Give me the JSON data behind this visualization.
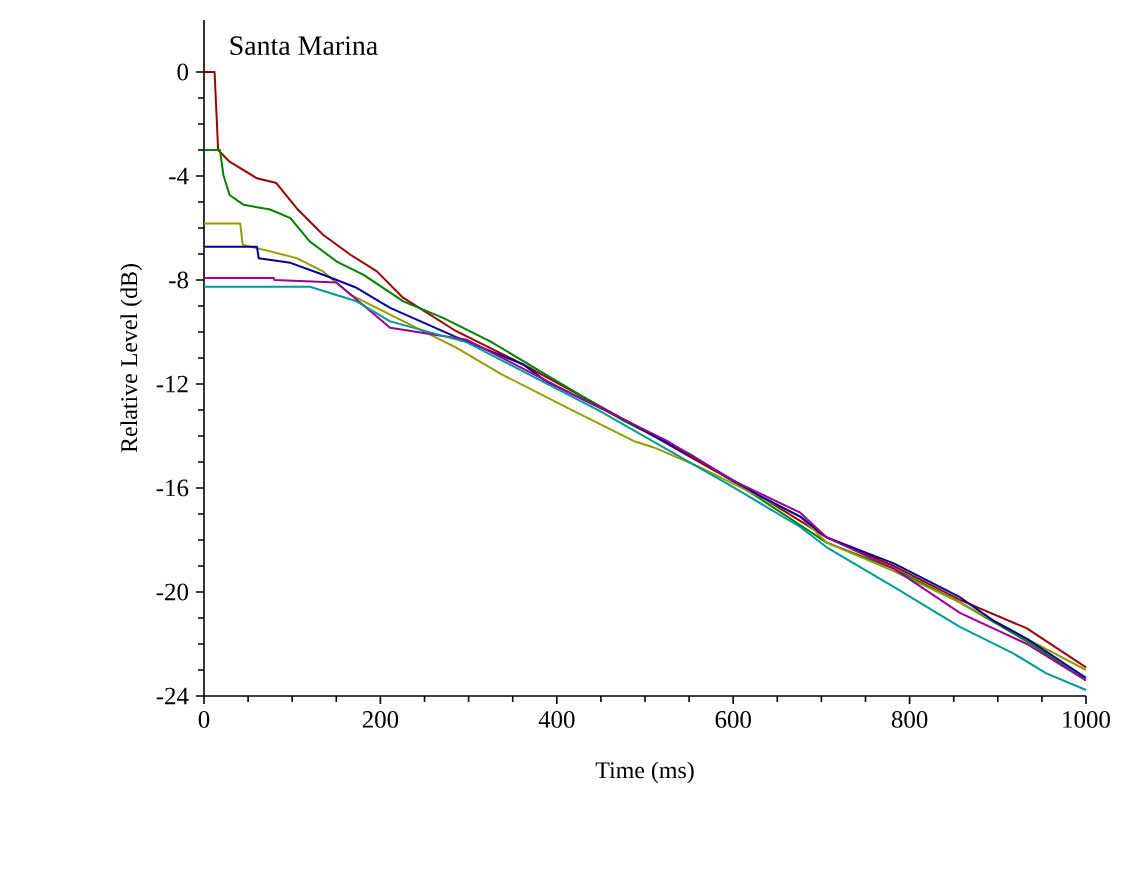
{
  "chart_data": {
    "type": "line",
    "title": "Santa Marina",
    "xlabel": "Time (ms)",
    "ylabel": "Relative Level (dB)",
    "xlim": [
      0,
      1000
    ],
    "ylim": [
      -24,
      2
    ],
    "xticks": [
      0,
      200,
      400,
      600,
      800,
      1000
    ],
    "yticks": [
      0,
      -4,
      -8,
      -12,
      -16,
      -20,
      -24
    ],
    "grid": false,
    "series": [
      {
        "color": "#990000",
        "x": [
          0,
          12,
          16,
          29,
          60,
          82,
          105,
          135,
          166,
          196,
          226,
          256,
          286,
          362,
          438,
          513,
          551,
          630,
          706,
          782,
          857,
          933,
          1000
        ],
        "values": [
          0,
          0,
          -3,
          -3.45,
          -4.09,
          -4.27,
          -5.24,
          -6.26,
          -7.03,
          -7.67,
          -8.69,
          -9.33,
          -9.97,
          -11.25,
          -12.65,
          -14.06,
          -14.8,
          -16.3,
          -17.9,
          -19.0,
          -20.3,
          -21.4,
          -22.9
        ]
      },
      {
        "color": "#008000",
        "x": [
          0,
          18,
          22,
          29,
          45,
          75,
          98,
          120,
          150,
          181,
          226,
          271,
          324,
          400,
          476,
          551,
          630,
          706,
          782,
          857,
          933,
          1000
        ],
        "values": [
          -3,
          -3,
          -3.96,
          -4.73,
          -5.11,
          -5.29,
          -5.62,
          -6.52,
          -7.28,
          -7.8,
          -8.82,
          -9.46,
          -10.35,
          -11.89,
          -13.42,
          -14.7,
          -16.4,
          -18.1,
          -19.1,
          -20.4,
          -21.9,
          -23.4
        ]
      },
      {
        "color": "#999900",
        "x": [
          0,
          41,
          44,
          75,
          105,
          135,
          166,
          211,
          286,
          336,
          411,
          487,
          510,
          562,
          676,
          706,
          782,
          857,
          933,
          1000
        ],
        "values": [
          -5.83,
          -5.83,
          -6.65,
          -6.9,
          -7.16,
          -7.67,
          -8.56,
          -9.33,
          -10.6,
          -11.6,
          -12.9,
          -14.19,
          -14.44,
          -15.2,
          -17.1,
          -18.1,
          -19.2,
          -20.4,
          -21.8,
          -23.0
        ]
      },
      {
        "color": "#000099",
        "x": [
          0,
          60,
          62,
          98,
          135,
          173,
          211,
          286,
          362,
          388,
          479,
          562,
          630,
          676,
          706,
          782,
          857,
          895,
          933,
          1000
        ],
        "values": [
          -6.72,
          -6.72,
          -7.16,
          -7.34,
          -7.8,
          -8.3,
          -9.07,
          -10.2,
          -11.25,
          -11.9,
          -13.42,
          -14.95,
          -16.3,
          -17.1,
          -17.9,
          -18.9,
          -20.2,
          -21.1,
          -21.8,
          -23.3
        ]
      },
      {
        "color": "#990099",
        "x": [
          0,
          79,
          80,
          150,
          211,
          298,
          411,
          525,
          600,
          676,
          706,
          782,
          857,
          933,
          1000
        ],
        "values": [
          -7.92,
          -7.92,
          -8.0,
          -8.1,
          -9.84,
          -10.3,
          -12.27,
          -14.19,
          -15.72,
          -16.95,
          -17.9,
          -19.1,
          -20.8,
          -22.0,
          -23.4
        ]
      },
      {
        "color": "#009999",
        "x": [
          0,
          120,
          173,
          211,
          298,
          449,
          600,
          676,
          706,
          782,
          857,
          918,
          955,
          1000
        ],
        "values": [
          -8.26,
          -8.26,
          -8.82,
          -9.59,
          -10.4,
          -13.04,
          -15.97,
          -17.5,
          -18.28,
          -19.8,
          -21.34,
          -22.37,
          -23.13,
          -23.77
        ]
      }
    ]
  }
}
